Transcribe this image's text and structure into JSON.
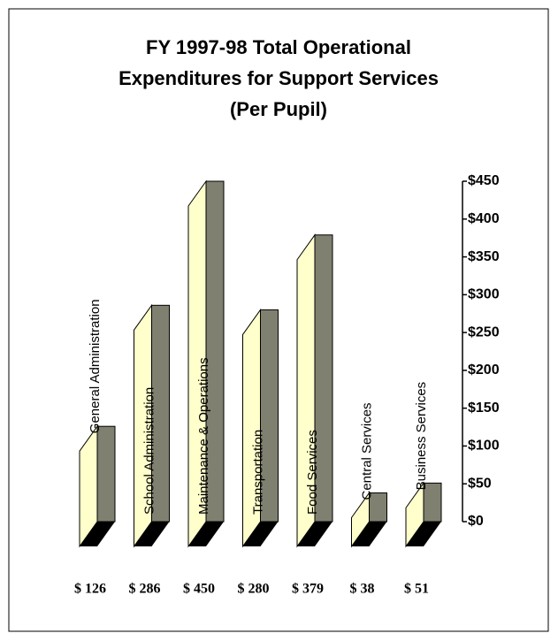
{
  "chart_data": {
    "type": "bar3d",
    "title": [
      "FY 1997-98 Total Operational",
      "Expenditures for Support Services",
      "(Per Pupil)"
    ],
    "categories": [
      "General Administration",
      "School Administration",
      "Maintenance & Operations",
      "Transportation",
      "Food Services",
      "Central Services",
      "Business Services"
    ],
    "values": [
      126,
      286,
      450,
      280,
      379,
      38,
      51
    ],
    "value_labels": [
      "$ 126",
      "$ 286",
      "$ 450",
      "$ 280",
      "$ 379",
      "$ 38",
      "$ 51"
    ],
    "front_color": "#ffffcc",
    "side_color": "#808070",
    "base_color": "#000000",
    "ylim": [
      0,
      450
    ],
    "yticks": [
      {
        "value": 0,
        "label": "$0"
      },
      {
        "value": 50,
        "label": "$50"
      },
      {
        "value": 100,
        "label": "$100"
      },
      {
        "value": 150,
        "label": "$150"
      },
      {
        "value": 200,
        "label": "$200"
      },
      {
        "value": 250,
        "label": "$250"
      },
      {
        "value": 300,
        "label": "$300"
      },
      {
        "value": 350,
        "label": "$350"
      },
      {
        "value": 400,
        "label": "$400"
      },
      {
        "value": 450,
        "label": "$450"
      }
    ],
    "y_axis_side": "right"
  }
}
